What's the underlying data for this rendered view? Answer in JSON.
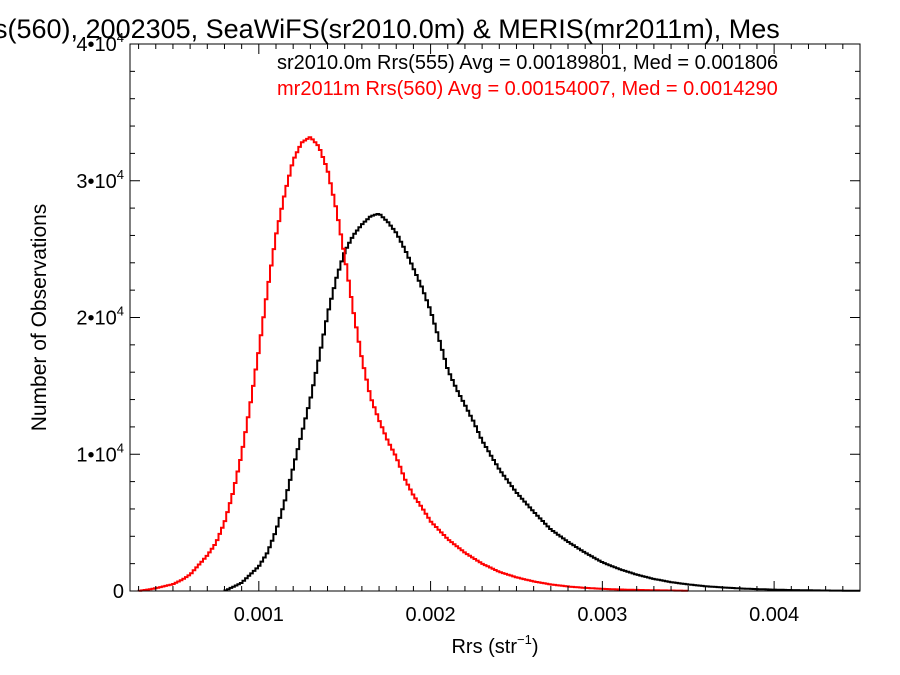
{
  "chart_data": {
    "type": "line",
    "title": "s(560), 2002305, SeaWiFS(sr2010.0m) & MERIS(mr2011m), Mes",
    "xlabel_main": "Rrs (str",
    "xlabel_sup": "−1",
    "xlabel_tail": ")",
    "ylabel": "Number of Observations",
    "xlim": [
      0.00025,
      0.0045
    ],
    "ylim": [
      0,
      40000
    ],
    "x_ticks": [
      0.001,
      0.002,
      0.003,
      0.004
    ],
    "x_tick_labels": [
      "0.001",
      "0.002",
      "0.003",
      "0.004"
    ],
    "y_ticks": [
      0,
      10000,
      20000,
      30000,
      40000
    ],
    "y_tick_labels": [
      {
        "base": "0",
        "exp": ""
      },
      {
        "base": "1•10",
        "exp": "4"
      },
      {
        "base": "2•10",
        "exp": "4"
      },
      {
        "base": "3•10",
        "exp": "4"
      },
      {
        "base": "4•10",
        "exp": "4"
      }
    ],
    "annotations": [
      {
        "text": "sr2010.0m Rrs(555) Avg = 0.00189801, Med = 0.001806",
        "color": "#000000"
      },
      {
        "text": "mr2011m Rrs(560) Avg = 0.00154007, Med = 0.0014290",
        "color": "#ff0000"
      }
    ],
    "series": [
      {
        "color": "#000000",
        "x": [
          0.0008,
          0.00085,
          0.0009,
          0.00095,
          0.001,
          0.00105,
          0.0011,
          0.00115,
          0.0012,
          0.00125,
          0.0013,
          0.00135,
          0.0014,
          0.00145,
          0.0015,
          0.00155,
          0.0016,
          0.00165,
          0.0017,
          0.00175,
          0.0018,
          0.00185,
          0.0019,
          0.00195,
          0.002,
          0.00205,
          0.0021,
          0.00215,
          0.0022,
          0.00225,
          0.0023,
          0.0024,
          0.0025,
          0.0026,
          0.0027,
          0.0028,
          0.0029,
          0.003,
          0.0031,
          0.0032,
          0.0033,
          0.0034,
          0.0035,
          0.0036,
          0.0037,
          0.0038,
          0.0039,
          0.004,
          0.0041,
          0.0042,
          0.0043,
          0.0044,
          0.0045
        ],
        "y": [
          0,
          300,
          600,
          1200,
          1800,
          2800,
          4400,
          6500,
          9000,
          11500,
          14000,
          17000,
          20200,
          22800,
          24800,
          26000,
          26800,
          27400,
          27600,
          27000,
          26200,
          25000,
          23600,
          22200,
          20500,
          18400,
          16200,
          14800,
          13600,
          12400,
          11000,
          8900,
          7200,
          5800,
          4500,
          3600,
          2800,
          2100,
          1600,
          1200,
          880,
          650,
          480,
          350,
          260,
          190,
          140,
          100,
          70,
          50,
          35,
          25,
          15
        ]
      },
      {
        "color": "#ff0000",
        "x": [
          0.0003,
          0.0004,
          0.0005,
          0.00055,
          0.0006,
          0.00065,
          0.0007,
          0.00075,
          0.0008,
          0.00085,
          0.0009,
          0.00095,
          0.001,
          0.00105,
          0.0011,
          0.00115,
          0.0012,
          0.00125,
          0.0013,
          0.00135,
          0.0014,
          0.00145,
          0.0015,
          0.00155,
          0.0016,
          0.00165,
          0.0017,
          0.00175,
          0.0018,
          0.00185,
          0.0019,
          0.00195,
          0.002,
          0.0021,
          0.0022,
          0.0023,
          0.0024,
          0.0025,
          0.0026,
          0.0027,
          0.0028,
          0.0029,
          0.003,
          0.0031,
          0.0032,
          0.0033,
          0.0034,
          0.0035
        ],
        "y": [
          0,
          200,
          500,
          800,
          1200,
          1900,
          2600,
          3500,
          5000,
          7200,
          10000,
          13600,
          17600,
          22000,
          26000,
          29000,
          31500,
          32800,
          33200,
          32500,
          30800,
          28000,
          24500,
          20500,
          17000,
          14200,
          12500,
          11000,
          9800,
          8200,
          7000,
          6100,
          5100,
          3800,
          2800,
          2000,
          1400,
          1000,
          700,
          480,
          330,
          230,
          160,
          110,
          80,
          55,
          35,
          20
        ]
      }
    ]
  }
}
